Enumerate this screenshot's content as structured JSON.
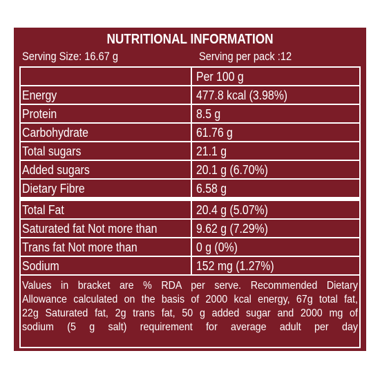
{
  "title": "NUTRITIONAL INFORMATION",
  "serving_size": "Serving Size: 16.67 g",
  "servings_per_pack": "Serving  per pack :12",
  "table": {
    "column_header": "Per 100 g",
    "rows": [
      [
        "Energy",
        "477.8 kcal (3.98%)"
      ],
      [
        "Protein",
        "8.5 g"
      ],
      [
        "Carbohydrate",
        "61.76 g"
      ],
      [
        "Total sugars",
        "21.1 g"
      ],
      [
        " Added sugars",
        "20.1 g (6.70%)"
      ],
      [
        " Dietary Fibre",
        "6.58 g"
      ],
      [
        "Total Fat",
        "20.4 g (5.07%)"
      ],
      [
        " Saturated fat Not more than",
        "9.62 g (7.29%)"
      ],
      [
        " Trans fat Not more than",
        "0 g (0%)"
      ],
      [
        " Sodium",
        "152 mg (1.27%)"
      ]
    ]
  },
  "footnote": [
    "Values in bracket are % RDA per serve. Recommended Dietary",
    "Allowance calculated on the basis of 2000 kcal energy, 67g total fat,",
    "22g Saturated fat, 2g trans fat, 50 g added sugar and 2000 mg of",
    "sodium (5 g salt) requirement for average adult per day"
  ]
}
